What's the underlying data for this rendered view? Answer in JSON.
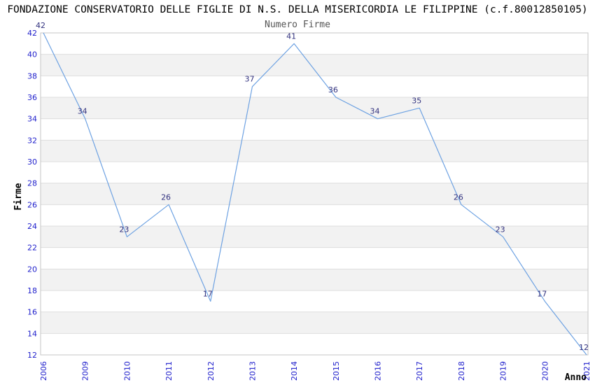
{
  "header": {
    "title": "FONDAZIONE CONSERVATORIO DELLE FIGLIE DI N.S. DELLA MISERICORDIA LE FILIPPINE (c.f.80012850105)",
    "subtitle": "Numero Firme"
  },
  "chart_data": {
    "type": "line",
    "title": "Numero Firme",
    "categories": [
      "2006",
      "2009",
      "2010",
      "2011",
      "2012",
      "2013",
      "2014",
      "2015",
      "2016",
      "2017",
      "2018",
      "2019",
      "2020",
      "2021"
    ],
    "values": [
      42,
      34,
      23,
      26,
      17,
      37,
      41,
      36,
      34,
      35,
      26,
      23,
      17,
      12
    ],
    "xlabel": "Anno",
    "ylabel": "Firme",
    "ylim": [
      12,
      42
    ],
    "ytick_step": 2,
    "grid": "horizontal-alternating-bands",
    "legend": "none",
    "point_labels_shown": true,
    "colors": {
      "line": "#6ea2e2",
      "data_label": "#32327f",
      "tick_label": "#2121cc",
      "band_fill": "#f2f2f2",
      "gridline": "#dedede",
      "plot_border": "#c6c6c6",
      "axis_title": "#000000",
      "subtitle": "#555555",
      "title": "#000000",
      "background": "#ffffff"
    }
  }
}
